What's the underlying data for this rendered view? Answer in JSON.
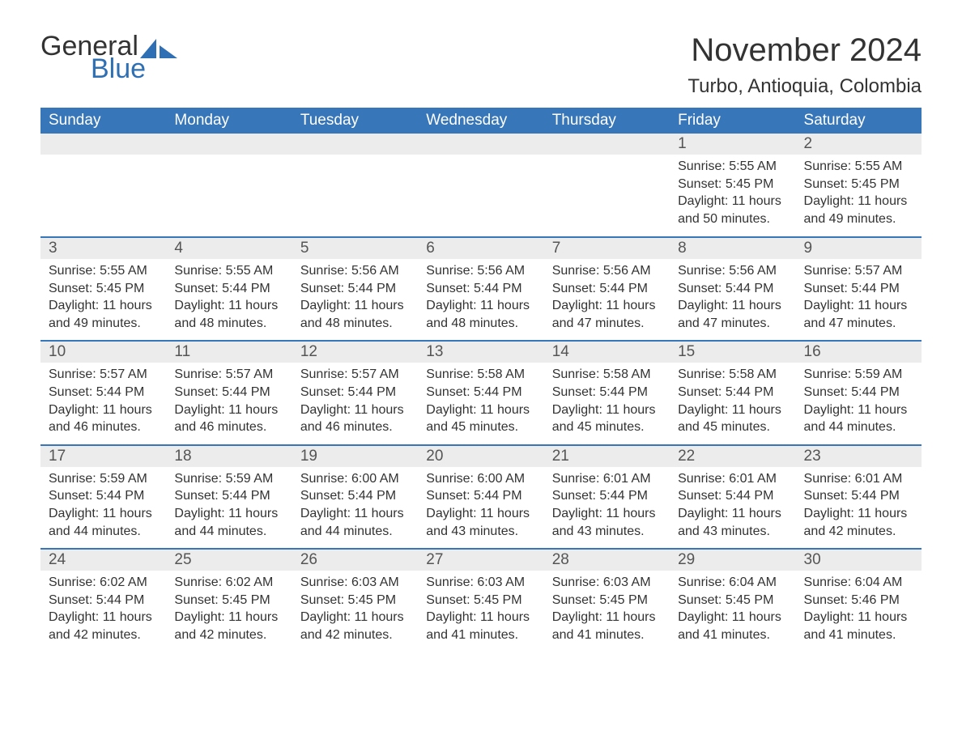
{
  "brand": {
    "word1": "General",
    "word2": "Blue",
    "accent": "#2f6fb3"
  },
  "title": "November 2024",
  "location": "Turbo, Antioquia, Colombia",
  "colors": {
    "header_bg": "#3776b8",
    "header_text": "#ffffff",
    "row_divider": "#3776b8",
    "daynum_bg": "#ececec",
    "text": "#333333",
    "background": "#ffffff"
  },
  "fonts": {
    "title_size": 40,
    "location_size": 24,
    "dow_size": 19,
    "body_size": 16
  },
  "days_of_week": [
    "Sunday",
    "Monday",
    "Tuesday",
    "Wednesday",
    "Thursday",
    "Friday",
    "Saturday"
  ],
  "weeks": [
    [
      null,
      null,
      null,
      null,
      null,
      {
        "d": "1",
        "sunrise": "5:55 AM",
        "sunset": "5:45 PM",
        "daylight": "11 hours and 50 minutes."
      },
      {
        "d": "2",
        "sunrise": "5:55 AM",
        "sunset": "5:45 PM",
        "daylight": "11 hours and 49 minutes."
      }
    ],
    [
      {
        "d": "3",
        "sunrise": "5:55 AM",
        "sunset": "5:45 PM",
        "daylight": "11 hours and 49 minutes."
      },
      {
        "d": "4",
        "sunrise": "5:55 AM",
        "sunset": "5:44 PM",
        "daylight": "11 hours and 48 minutes."
      },
      {
        "d": "5",
        "sunrise": "5:56 AM",
        "sunset": "5:44 PM",
        "daylight": "11 hours and 48 minutes."
      },
      {
        "d": "6",
        "sunrise": "5:56 AM",
        "sunset": "5:44 PM",
        "daylight": "11 hours and 48 minutes."
      },
      {
        "d": "7",
        "sunrise": "5:56 AM",
        "sunset": "5:44 PM",
        "daylight": "11 hours and 47 minutes."
      },
      {
        "d": "8",
        "sunrise": "5:56 AM",
        "sunset": "5:44 PM",
        "daylight": "11 hours and 47 minutes."
      },
      {
        "d": "9",
        "sunrise": "5:57 AM",
        "sunset": "5:44 PM",
        "daylight": "11 hours and 47 minutes."
      }
    ],
    [
      {
        "d": "10",
        "sunrise": "5:57 AM",
        "sunset": "5:44 PM",
        "daylight": "11 hours and 46 minutes."
      },
      {
        "d": "11",
        "sunrise": "5:57 AM",
        "sunset": "5:44 PM",
        "daylight": "11 hours and 46 minutes."
      },
      {
        "d": "12",
        "sunrise": "5:57 AM",
        "sunset": "5:44 PM",
        "daylight": "11 hours and 46 minutes."
      },
      {
        "d": "13",
        "sunrise": "5:58 AM",
        "sunset": "5:44 PM",
        "daylight": "11 hours and 45 minutes."
      },
      {
        "d": "14",
        "sunrise": "5:58 AM",
        "sunset": "5:44 PM",
        "daylight": "11 hours and 45 minutes."
      },
      {
        "d": "15",
        "sunrise": "5:58 AM",
        "sunset": "5:44 PM",
        "daylight": "11 hours and 45 minutes."
      },
      {
        "d": "16",
        "sunrise": "5:59 AM",
        "sunset": "5:44 PM",
        "daylight": "11 hours and 44 minutes."
      }
    ],
    [
      {
        "d": "17",
        "sunrise": "5:59 AM",
        "sunset": "5:44 PM",
        "daylight": "11 hours and 44 minutes."
      },
      {
        "d": "18",
        "sunrise": "5:59 AM",
        "sunset": "5:44 PM",
        "daylight": "11 hours and 44 minutes."
      },
      {
        "d": "19",
        "sunrise": "6:00 AM",
        "sunset": "5:44 PM",
        "daylight": "11 hours and 44 minutes."
      },
      {
        "d": "20",
        "sunrise": "6:00 AM",
        "sunset": "5:44 PM",
        "daylight": "11 hours and 43 minutes."
      },
      {
        "d": "21",
        "sunrise": "6:01 AM",
        "sunset": "5:44 PM",
        "daylight": "11 hours and 43 minutes."
      },
      {
        "d": "22",
        "sunrise": "6:01 AM",
        "sunset": "5:44 PM",
        "daylight": "11 hours and 43 minutes."
      },
      {
        "d": "23",
        "sunrise": "6:01 AM",
        "sunset": "5:44 PM",
        "daylight": "11 hours and 42 minutes."
      }
    ],
    [
      {
        "d": "24",
        "sunrise": "6:02 AM",
        "sunset": "5:44 PM",
        "daylight": "11 hours and 42 minutes."
      },
      {
        "d": "25",
        "sunrise": "6:02 AM",
        "sunset": "5:45 PM",
        "daylight": "11 hours and 42 minutes."
      },
      {
        "d": "26",
        "sunrise": "6:03 AM",
        "sunset": "5:45 PM",
        "daylight": "11 hours and 42 minutes."
      },
      {
        "d": "27",
        "sunrise": "6:03 AM",
        "sunset": "5:45 PM",
        "daylight": "11 hours and 41 minutes."
      },
      {
        "d": "28",
        "sunrise": "6:03 AM",
        "sunset": "5:45 PM",
        "daylight": "11 hours and 41 minutes."
      },
      {
        "d": "29",
        "sunrise": "6:04 AM",
        "sunset": "5:45 PM",
        "daylight": "11 hours and 41 minutes."
      },
      {
        "d": "30",
        "sunrise": "6:04 AM",
        "sunset": "5:46 PM",
        "daylight": "11 hours and 41 minutes."
      }
    ]
  ],
  "labels": {
    "sunrise": "Sunrise:",
    "sunset": "Sunset:",
    "daylight": "Daylight:"
  }
}
